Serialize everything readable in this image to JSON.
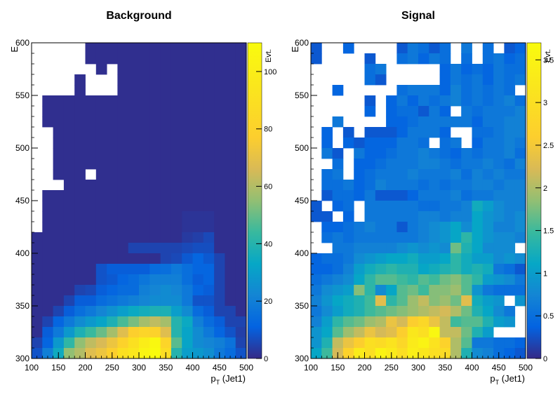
{
  "chart_data": [
    {
      "type": "heatmap",
      "title": "Background",
      "xlabel": "p_{T} (Jet1)",
      "ylabel": "E",
      "zlabel": "Evt.",
      "xlim": [
        100,
        500
      ],
      "ylim": [
        300,
        600
      ],
      "xticks": [
        100,
        150,
        200,
        250,
        300,
        350,
        400,
        450,
        500
      ],
      "yticks": [
        300,
        350,
        400,
        450,
        500,
        550,
        600
      ],
      "zlim": [
        0,
        110
      ],
      "zticks": [
        0,
        20,
        40,
        60,
        80,
        100
      ],
      "bins": {
        "nx": 20,
        "ny": 30
      },
      "row_labels_note": "rows listed from y=600 (top) to y=300 (bottom); -1 = empty bin",
      "values": [
        [
          -1,
          -1,
          -1,
          -1,
          -1,
          1,
          1,
          1,
          1,
          1,
          1,
          1,
          1,
          1,
          1,
          1,
          1,
          1,
          1,
          1
        ],
        [
          -1,
          -1,
          -1,
          -1,
          -1,
          1,
          1,
          1,
          1,
          1,
          1,
          1,
          1,
          1,
          1,
          1,
          1,
          1,
          1,
          1
        ],
        [
          -1,
          -1,
          -1,
          -1,
          -1,
          -1,
          1,
          -1,
          1,
          1,
          1,
          1,
          1,
          1,
          1,
          1,
          1,
          1,
          1,
          1
        ],
        [
          -1,
          -1,
          -1,
          -1,
          1,
          -1,
          -1,
          -1,
          1,
          1,
          1,
          1,
          1,
          1,
          1,
          1,
          1,
          1,
          1,
          1
        ],
        [
          -1,
          -1,
          -1,
          -1,
          1,
          -1,
          -1,
          -1,
          1,
          1,
          1,
          1,
          1,
          1,
          1,
          1,
          1,
          1,
          1,
          1
        ],
        [
          -1,
          1,
          1,
          1,
          1,
          1,
          1,
          1,
          1,
          1,
          1,
          1,
          1,
          1,
          1,
          1,
          1,
          1,
          1,
          1
        ],
        [
          -1,
          1,
          1,
          1,
          1,
          1,
          1,
          1,
          1,
          1,
          1,
          1,
          1,
          1,
          1,
          1,
          1,
          1,
          1,
          1
        ],
        [
          -1,
          1,
          1,
          1,
          1,
          1,
          1,
          1,
          1,
          1,
          1,
          1,
          1,
          1,
          1,
          1,
          1,
          1,
          1,
          1
        ],
        [
          -1,
          -1,
          1,
          1,
          1,
          1,
          1,
          1,
          1,
          1,
          1,
          1,
          1,
          1,
          1,
          1,
          1,
          1,
          1,
          1
        ],
        [
          -1,
          -1,
          1,
          1,
          1,
          1,
          1,
          1,
          1,
          1,
          1,
          1,
          1,
          1,
          1,
          1,
          1,
          1,
          1,
          1
        ],
        [
          -1,
          -1,
          1,
          1,
          1,
          1,
          1,
          1,
          1,
          1,
          1,
          1,
          1,
          1,
          1,
          1,
          1,
          1,
          1,
          1
        ],
        [
          -1,
          -1,
          1,
          1,
          1,
          1,
          1,
          1,
          1,
          1,
          1,
          1,
          1,
          1,
          1,
          1,
          1,
          1,
          1,
          1
        ],
        [
          -1,
          -1,
          1,
          1,
          1,
          -1,
          1,
          1,
          1,
          1,
          1,
          1,
          1,
          1,
          1,
          1,
          1,
          1,
          1,
          1
        ],
        [
          -1,
          -1,
          -1,
          1,
          1,
          1,
          1,
          1,
          1,
          1,
          1,
          1,
          1,
          1,
          1,
          1,
          1,
          1,
          1,
          1
        ],
        [
          -1,
          1,
          1,
          1,
          1,
          1,
          1,
          1,
          1,
          1,
          1,
          1,
          1,
          1,
          1,
          1,
          1,
          1,
          1,
          1
        ],
        [
          -1,
          1,
          1,
          1,
          1,
          1,
          1,
          1,
          1,
          1,
          1,
          1,
          1,
          1,
          1,
          1,
          1,
          1,
          1,
          1
        ],
        [
          -1,
          1,
          1,
          1,
          1,
          1,
          1,
          1,
          1,
          1,
          1,
          1,
          1,
          1,
          2,
          2,
          2,
          1,
          1,
          1
        ],
        [
          -1,
          1,
          1,
          1,
          1,
          1,
          1,
          1,
          1,
          1,
          1,
          1,
          1,
          1,
          2,
          2,
          2,
          1,
          1,
          1
        ],
        [
          1,
          1,
          1,
          1,
          1,
          1,
          1,
          1,
          1,
          1,
          1,
          1,
          1,
          1,
          3,
          4,
          6,
          1,
          1,
          1
        ],
        [
          1,
          1,
          1,
          1,
          1,
          1,
          1,
          1,
          1,
          5,
          5,
          5,
          5,
          5,
          6,
          7,
          7,
          1,
          1,
          1
        ],
        [
          1,
          1,
          1,
          1,
          1,
          1,
          1,
          1,
          1,
          1,
          1,
          1,
          5,
          6,
          9,
          12,
          9,
          5,
          1,
          1
        ],
        [
          1,
          1,
          1,
          1,
          1,
          1,
          8,
          10,
          10,
          10,
          10,
          14,
          15,
          18,
          15,
          12,
          12,
          5,
          1,
          1
        ],
        [
          1,
          1,
          1,
          1,
          1,
          1,
          8,
          9,
          12,
          14,
          17,
          20,
          20,
          20,
          15,
          10,
          12,
          5,
          1,
          1
        ],
        [
          1,
          1,
          1,
          1,
          5,
          6,
          10,
          12,
          14,
          14,
          20,
          22,
          24,
          22,
          18,
          12,
          10,
          5,
          1,
          1
        ],
        [
          1,
          1,
          1,
          5,
          10,
          10,
          14,
          16,
          18,
          20,
          22,
          24,
          24,
          24,
          18,
          8,
          8,
          5,
          1,
          1
        ],
        [
          1,
          1,
          5,
          10,
          15,
          18,
          22,
          26,
          30,
          34,
          36,
          38,
          38,
          30,
          24,
          14,
          10,
          5,
          5,
          1
        ],
        [
          1,
          5,
          12,
          18,
          24,
          28,
          32,
          38,
          46,
          52,
          58,
          62,
          58,
          40,
          34,
          20,
          14,
          10,
          5,
          5
        ],
        [
          1,
          10,
          18,
          28,
          38,
          44,
          50,
          58,
          68,
          78,
          82,
          80,
          68,
          40,
          32,
          24,
          18,
          12,
          8,
          4
        ],
        [
          5,
          12,
          28,
          42,
          55,
          62,
          66,
          72,
          80,
          90,
          100,
          108,
          82,
          48,
          32,
          24,
          22,
          20,
          16,
          5
        ],
        [
          8,
          20,
          35,
          55,
          60,
          68,
          72,
          78,
          90,
          95,
          105,
          110,
          88,
          40,
          30,
          28,
          25,
          18,
          14,
          8
        ]
      ]
    },
    {
      "type": "heatmap",
      "title": "Signal",
      "xlabel": "p_{T} (Jet1)",
      "ylabel": "E",
      "zlabel": "Evt.",
      "xlim": [
        100,
        500
      ],
      "ylim": [
        300,
        600
      ],
      "xticks": [
        100,
        150,
        200,
        250,
        300,
        350,
        400,
        450,
        500
      ],
      "yticks": [
        300,
        350,
        400,
        450,
        500,
        550,
        600
      ],
      "zlim": [
        0,
        3.7
      ],
      "zticks": [
        0,
        0.5,
        1,
        1.5,
        2,
        2.5,
        3,
        3.5
      ],
      "bins": {
        "nx": 20,
        "ny": 30
      },
      "row_labels_note": "rows listed from y=600 (top) to y=300 (bottom); -1 = empty bin",
      "values": [
        [
          0.3,
          -1,
          -1,
          0.4,
          -1,
          -1,
          -1,
          -1,
          0.3,
          0.6,
          0.5,
          0.3,
          0.5,
          -1,
          0.6,
          -1,
          0.5,
          -1,
          0.3,
          0.4
        ],
        [
          0.3,
          -1,
          -1,
          -1,
          -1,
          0.3,
          -1,
          -1,
          0.5,
          0.6,
          0.4,
          0.6,
          0.5,
          -1,
          0.5,
          -1,
          0.5,
          0.6,
          0.4,
          0.5
        ],
        [
          -1,
          -1,
          -1,
          -1,
          -1,
          0.5,
          0.6,
          -1,
          -1,
          -1,
          -1,
          -1,
          0.4,
          0.6,
          0.4,
          0.5,
          0.4,
          0.6,
          0.5,
          0.5
        ],
        [
          -1,
          -1,
          -1,
          -1,
          -1,
          0.5,
          0.3,
          -1,
          -1,
          -1,
          -1,
          -1,
          0.4,
          0.6,
          0.5,
          0.6,
          0.4,
          0.6,
          0.5,
          0.6
        ],
        [
          -1,
          -1,
          0.4,
          -1,
          -1,
          -1,
          -1,
          -1,
          0.5,
          0.6,
          0.6,
          0.6,
          0.4,
          0.7,
          0.5,
          0.6,
          0.5,
          0.6,
          0.5,
          -1
        ],
        [
          -1,
          -1,
          -1,
          -1,
          -1,
          0.3,
          -1,
          0.4,
          0.6,
          0.4,
          0.6,
          0.5,
          0.6,
          0.7,
          0.5,
          0.6,
          0.5,
          0.6,
          0.7,
          0.5
        ],
        [
          -1,
          -1,
          -1,
          -1,
          -1,
          0.4,
          -1,
          0.4,
          0.5,
          0.5,
          0.3,
          0.6,
          0.4,
          -1,
          0.6,
          0.5,
          0.6,
          0.6,
          0.6,
          0.7
        ],
        [
          -1,
          -1,
          0.6,
          -1,
          -1,
          -1,
          -1,
          0.4,
          0.4,
          0.5,
          0.6,
          0.6,
          0.6,
          0.6,
          0.6,
          0.4,
          0.6,
          0.6,
          0.7,
          0.7
        ],
        [
          -1,
          0.4,
          -1,
          0.3,
          -1,
          0.3,
          0.3,
          0.3,
          0.4,
          0.6,
          0.6,
          0.6,
          0.4,
          -1,
          -1,
          0.5,
          0.5,
          0.6,
          0.7,
          0.7
        ],
        [
          -1,
          0.4,
          -1,
          0.4,
          0.3,
          0.4,
          0.4,
          0.4,
          0.6,
          0.6,
          0.5,
          -1,
          0.5,
          0.6,
          -1,
          0.4,
          0.6,
          0.6,
          0.7,
          0.6
        ],
        [
          -1,
          0.6,
          0.3,
          -1,
          0.6,
          0.4,
          0.4,
          0.5,
          0.6,
          0.6,
          0.7,
          0.6,
          0.5,
          0.4,
          0.6,
          0.5,
          0.6,
          0.6,
          0.7,
          0.5
        ],
        [
          -1,
          -1,
          0.5,
          -1,
          0.4,
          0.4,
          0.5,
          0.6,
          0.6,
          0.6,
          0.7,
          0.7,
          0.6,
          0.5,
          0.6,
          0.6,
          0.7,
          0.6,
          0.5,
          0.7
        ],
        [
          -1,
          0.5,
          0.6,
          -1,
          0.4,
          0.5,
          0.6,
          0.6,
          0.6,
          0.7,
          0.6,
          0.6,
          0.6,
          0.7,
          0.5,
          0.7,
          0.6,
          0.7,
          0.6,
          0.6
        ],
        [
          -1,
          0.5,
          0.5,
          0.6,
          0.4,
          0.5,
          0.7,
          0.6,
          0.6,
          0.6,
          0.5,
          0.6,
          0.5,
          0.6,
          0.6,
          0.7,
          0.7,
          0.6,
          0.7,
          0.7
        ],
        [
          -1,
          0.3,
          0.5,
          0.5,
          0.4,
          0.6,
          0.3,
          0.3,
          0.3,
          0.4,
          0.6,
          0.6,
          0.6,
          0.7,
          0.5,
          0.6,
          0.6,
          0.7,
          0.7,
          0.7
        ],
        [
          0.3,
          -1,
          0.4,
          0.5,
          -1,
          0.6,
          0.6,
          0.6,
          0.6,
          0.6,
          0.5,
          0.5,
          0.6,
          0.6,
          0.7,
          1.2,
          1.0,
          0.8,
          0.7,
          0.7
        ],
        [
          0.3,
          0.3,
          -1,
          0.4,
          -1,
          0.6,
          0.6,
          0.6,
          0.6,
          0.6,
          0.7,
          0.7,
          0.6,
          0.7,
          0.7,
          1.1,
          0.9,
          0.8,
          0.7,
          0.8
        ],
        [
          -1,
          0.4,
          0.4,
          0.5,
          0.6,
          0.7,
          0.6,
          0.6,
          0.3,
          0.6,
          0.7,
          0.8,
          0.9,
          1.1,
          0.8,
          1.1,
          0.9,
          0.7,
          0.7,
          0.8
        ],
        [
          -1,
          0.5,
          0.6,
          0.5,
          0.6,
          0.6,
          0.6,
          0.6,
          0.6,
          0.6,
          0.7,
          0.8,
          0.9,
          1.1,
          1.4,
          1.1,
          0.9,
          0.8,
          0.8,
          0.7
        ],
        [
          -1,
          -1,
          0.6,
          0.6,
          0.7,
          0.7,
          0.7,
          0.7,
          0.8,
          0.9,
          0.8,
          0.9,
          0.8,
          1.7,
          1.3,
          1.1,
          0.8,
          0.8,
          0.8,
          -1
        ],
        [
          0.4,
          0.5,
          0.5,
          0.6,
          0.8,
          0.9,
          1.0,
          1.1,
          1.1,
          1.2,
          1.0,
          1.0,
          1.1,
          1.4,
          1.2,
          1.0,
          1.0,
          0.8,
          0.9,
          0.8
        ],
        [
          0.4,
          0.4,
          0.5,
          0.7,
          1.0,
          1.2,
          1.3,
          1.4,
          1.3,
          1.3,
          1.1,
          1.2,
          1.3,
          1.4,
          1.2,
          1.3,
          1.2,
          0.6,
          0.5,
          0.3
        ],
        [
          0.5,
          0.6,
          0.7,
          0.8,
          1.1,
          1.4,
          1.6,
          1.6,
          1.5,
          1.4,
          1.6,
          1.5,
          1.7,
          1.8,
          1.6,
          1.4,
          1.0,
          0.9,
          0.8,
          0.6
        ],
        [
          0.6,
          0.8,
          0.9,
          1.0,
          1.8,
          1.4,
          0.8,
          1.1,
          1.6,
          1.7,
          1.5,
          1.8,
          1.8,
          1.9,
          1.6,
          0.9,
          0.6,
          0.5,
          0.5,
          0.5
        ],
        [
          0.7,
          0.9,
          1.1,
          1.2,
          1.3,
          1.5,
          2.3,
          1.4,
          1.6,
          1.9,
          2.1,
          1.8,
          1.9,
          1.7,
          2.3,
          1.2,
          1.0,
          0.9,
          -1,
          0.9
        ],
        [
          0.6,
          0.8,
          1.0,
          1.2,
          1.3,
          1.5,
          1.6,
          1.7,
          1.8,
          1.9,
          2.0,
          2.1,
          2.2,
          2.0,
          1.7,
          1.3,
          1.1,
          0.8,
          0.6,
          -1
        ],
        [
          0.7,
          1.0,
          1.4,
          1.6,
          1.7,
          1.9,
          2.0,
          2.4,
          2.2,
          2.6,
          2.8,
          2.4,
          2.1,
          1.5,
          1.6,
          1.6,
          1.3,
          1.0,
          0.9,
          -1
        ],
        [
          0.9,
          1.1,
          1.6,
          1.9,
          2.1,
          2.4,
          2.2,
          2.3,
          2.6,
          3.2,
          3.0,
          3.6,
          2.1,
          2.1,
          1.7,
          1.3,
          1.0,
          -1,
          -1,
          -1
        ],
        [
          0.9,
          1.3,
          2.1,
          2.4,
          2.6,
          3.0,
          2.9,
          3.1,
          2.8,
          3.3,
          3.5,
          3.1,
          2.7,
          2.0,
          1.6,
          0.6,
          0.6,
          0.5,
          0.5,
          0.4
        ],
        [
          1.1,
          1.5,
          2.2,
          2.7,
          3.3,
          3.0,
          3.5,
          3.3,
          3.0,
          3.4,
          3.2,
          3.0,
          2.9,
          2.0,
          1.3,
          0.8,
          0.7,
          0.5,
          0.4,
          0.3
        ]
      ]
    }
  ]
}
